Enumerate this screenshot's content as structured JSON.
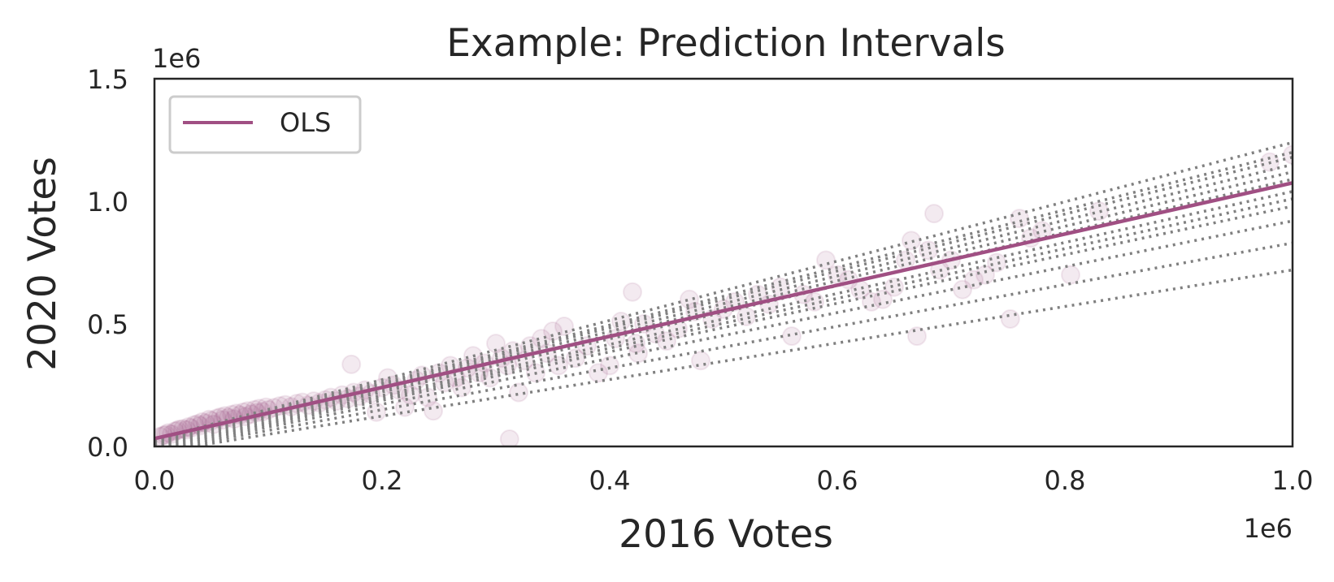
{
  "chart_data": {
    "type": "scatter",
    "title": "Example: Prediction Intervals",
    "xlabel": "2016 Votes",
    "ylabel": "2020 Votes",
    "x_offset_label": "1e6",
    "y_offset_label": "1e6",
    "xlim": [
      0,
      1000000
    ],
    "ylim": [
      0,
      1500000
    ],
    "xticks": [
      {
        "value": 0,
        "label": "0.0"
      },
      {
        "value": 200000,
        "label": "0.2"
      },
      {
        "value": 400000,
        "label": "0.4"
      },
      {
        "value": 600000,
        "label": "0.6"
      },
      {
        "value": 800000,
        "label": "0.8"
      },
      {
        "value": 1000000,
        "label": "1.0"
      }
    ],
    "yticks": [
      {
        "value": 0,
        "label": "0.0"
      },
      {
        "value": 500000,
        "label": "0.5"
      },
      {
        "value": 1000000,
        "label": "1.0"
      },
      {
        "value": 1500000,
        "label": "1.5"
      }
    ],
    "grid": false,
    "legend": {
      "placement": "upper-left",
      "entries": [
        "OLS"
      ]
    },
    "colors": {
      "ols": "#a04f83",
      "points": "#a04f83",
      "interval_lines": "#808080",
      "text": "#262626",
      "axes": "#262626"
    },
    "series": [
      {
        "name": "OLS",
        "kind": "line",
        "x": [
          0,
          1000000
        ],
        "y": [
          32000,
          1075000
        ]
      },
      {
        "kind": "scatter",
        "x": [
          5000,
          8000,
          10000,
          12000,
          15000,
          18000,
          20000,
          22000,
          25000,
          28000,
          30000,
          32000,
          35000,
          38000,
          40000,
          42000,
          45000,
          48000,
          50000,
          52000,
          55000,
          58000,
          60000,
          62000,
          65000,
          68000,
          70000,
          72000,
          75000,
          78000,
          80000,
          82000,
          85000,
          88000,
          90000,
          92000,
          95000,
          98000,
          100000,
          105000,
          110000,
          115000,
          120000,
          125000,
          130000,
          135000,
          140000,
          145000,
          150000,
          155000,
          160000,
          165000,
          170000,
          173000,
          175000,
          180000,
          185000,
          190000,
          195000,
          200000,
          205000,
          210000,
          215000,
          220000,
          225000,
          230000,
          235000,
          240000,
          245000,
          250000,
          255000,
          260000,
          265000,
          270000,
          275000,
          280000,
          285000,
          290000,
          295000,
          300000,
          305000,
          310000,
          312000,
          315000,
          320000,
          325000,
          330000,
          335000,
          340000,
          345000,
          350000,
          355000,
          360000,
          370000,
          380000,
          390000,
          400000,
          405000,
          410000,
          420000,
          423000,
          425000,
          430000,
          440000,
          450000,
          460000,
          470000,
          475000,
          480000,
          490000,
          500000,
          510000,
          520000,
          530000,
          540000,
          550000,
          560000,
          570000,
          580000,
          590000,
          600000,
          610000,
          620000,
          630000,
          640000,
          650000,
          660000,
          665000,
          670000,
          680000,
          685000,
          690000,
          700000,
          710000,
          720000,
          730000,
          740000,
          752000,
          760000,
          770000,
          780000,
          805000,
          830000,
          980000,
          1000000
        ],
        "y": [
          40000,
          45000,
          48000,
          55000,
          50000,
          62000,
          65000,
          70000,
          72000,
          68000,
          80000,
          75000,
          88000,
          92000,
          85000,
          100000,
          95000,
          110000,
          105000,
          90000,
          115000,
          120000,
          108000,
          125000,
          118000,
          130000,
          112000,
          135000,
          128000,
          140000,
          122000,
          145000,
          132000,
          150000,
          138000,
          155000,
          142000,
          160000,
          150000,
          158000,
          165000,
          170000,
          162000,
          175000,
          180000,
          168000,
          185000,
          178000,
          190000,
          200000,
          185000,
          210000,
          195000,
          335000,
          220000,
          205000,
          230000,
          215000,
          140000,
          240000,
          280000,
          250000,
          230000,
          160000,
          210000,
          270000,
          290000,
          200000,
          145000,
          300000,
          260000,
          330000,
          280000,
          240000,
          320000,
          370000,
          300000,
          340000,
          280000,
          420000,
          360000,
          330000,
          30000,
          390000,
          220000,
          350000,
          410000,
          300000,
          440000,
          380000,
          470000,
          330000,
          490000,
          360000,
          410000,
          300000,
          330000,
          440000,
          510000,
          630000,
          420000,
          380000,
          500000,
          460000,
          430000,
          480000,
          600000,
          550000,
          350000,
          520000,
          560000,
          590000,
          530000,
          620000,
          580000,
          650000,
          450000,
          620000,
          590000,
          760000,
          700000,
          680000,
          640000,
          590000,
          600000,
          650000,
          760000,
          840000,
          450000,
          800000,
          950000,
          720000,
          760000,
          640000,
          680000,
          700000,
          750000,
          520000,
          930000,
          850000,
          880000,
          700000,
          960000,
          1160000,
          1190000
        ]
      }
    ],
    "interval_lines": [
      {
        "y0": 30000,
        "y1": 1240000
      },
      {
        "y0": 25000,
        "y1": 1200000
      },
      {
        "y0": 20000,
        "y1": 1180000
      },
      {
        "y0": 15000,
        "y1": 1150000
      },
      {
        "y0": 10000,
        "y1": 1120000
      },
      {
        "y0": 5000,
        "y1": 1090000
      },
      {
        "y0": 0,
        "y1": 1040000
      },
      {
        "y0": -5000,
        "y1": 1010000
      },
      {
        "y0": -10000,
        "y1": 980000
      },
      {
        "y0": -15000,
        "y1": 920000
      },
      {
        "y0": -20000,
        "y1": 830000
      },
      {
        "y0": -25000,
        "y1": 720000
      }
    ]
  }
}
